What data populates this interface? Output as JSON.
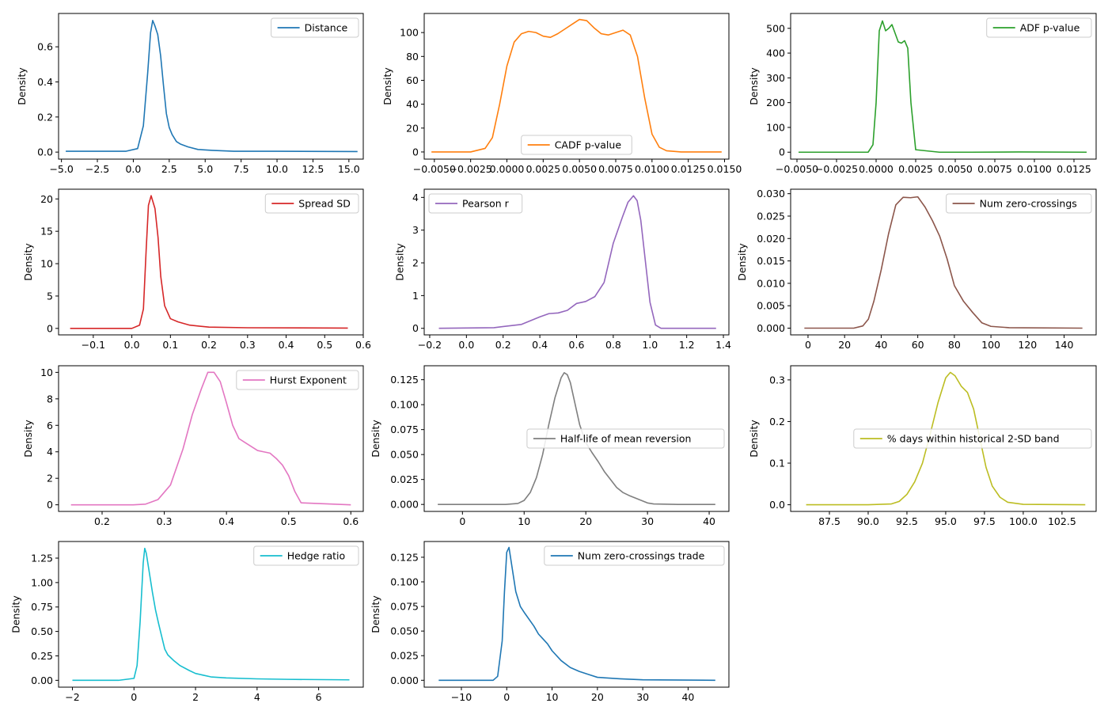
{
  "chart_data": [
    {
      "type": "line",
      "title": "",
      "xlabel": "",
      "ylabel": "Density",
      "series": [
        {
          "name": "Distance",
          "color": "#1f77b4",
          "x": [
            -4.7,
            -0.5,
            0.3,
            0.7,
            1.0,
            1.2,
            1.35,
            1.5,
            1.7,
            1.9,
            2.1,
            2.3,
            2.5,
            2.7,
            3.0,
            3.3,
            3.8,
            4.5,
            5.5,
            7,
            10,
            15.6
          ],
          "y": [
            0.005,
            0.005,
            0.02,
            0.15,
            0.45,
            0.68,
            0.75,
            0.72,
            0.67,
            0.55,
            0.38,
            0.22,
            0.14,
            0.1,
            0.06,
            0.045,
            0.03,
            0.015,
            0.01,
            0.005,
            0.005,
            0.003
          ]
        }
      ],
      "xlim": [
        -5.2,
        16.0
      ],
      "ylim": [
        -0.04,
        0.79
      ],
      "xticks": [
        -5.0,
        -2.5,
        0.0,
        2.5,
        5.0,
        7.5,
        10.0,
        12.5,
        15.0
      ],
      "xtick_labels": [
        "−5.0",
        "−2.5",
        "0.0",
        "2.5",
        "5.0",
        "7.5",
        "10.0",
        "12.5",
        "15.0"
      ],
      "yticks": [
        0.0,
        0.2,
        0.4,
        0.6
      ],
      "ytick_labels": [
        "0.0",
        "0.2",
        "0.4",
        "0.6"
      ],
      "legend_loc": "top-right"
    },
    {
      "type": "line",
      "title": "",
      "xlabel": "",
      "ylabel": "Density",
      "series": [
        {
          "name": "CADF p-value",
          "color": "#ff7f0e",
          "x": [
            -0.0052,
            -0.0025,
            -0.0015,
            -0.001,
            -0.0005,
            0.0,
            0.0005,
            0.001,
            0.0015,
            0.002,
            0.0025,
            0.003,
            0.0035,
            0.004,
            0.0045,
            0.005,
            0.0055,
            0.006,
            0.0065,
            0.007,
            0.0075,
            0.008,
            0.0085,
            0.009,
            0.0095,
            0.01,
            0.0105,
            0.011,
            0.012,
            0.0148
          ],
          "y": [
            0,
            0,
            3,
            12,
            40,
            72,
            92,
            99,
            101,
            100,
            97,
            96,
            99,
            103,
            107,
            111,
            110,
            104,
            99,
            98,
            100,
            102,
            98,
            80,
            45,
            15,
            4,
            1,
            0,
            0
          ]
        }
      ],
      "xlim": [
        -0.0057,
        0.0153
      ],
      "ylim": [
        -6,
        116
      ],
      "xticks": [
        -0.005,
        -0.0025,
        0.0,
        0.0025,
        0.005,
        0.0075,
        0.01,
        0.0125,
        0.015
      ],
      "xtick_labels": [
        "−0.0050",
        "−0.0025",
        "0.0000",
        "0.0025",
        "0.0050",
        "0.0075",
        "0.0100",
        "0.0125",
        "0.0150"
      ],
      "yticks": [
        0,
        20,
        40,
        60,
        80,
        100
      ],
      "ytick_labels": [
        "0",
        "20",
        "40",
        "60",
        "80",
        "100"
      ],
      "legend_loc": "bottom-center"
    },
    {
      "type": "line",
      "title": "",
      "xlabel": "",
      "ylabel": "Density",
      "series": [
        {
          "name": "ADF p-value",
          "color": "#2ca02c",
          "x": [
            -0.0049,
            -0.0005,
            -0.0002,
            0.0,
            0.0002,
            0.0004,
            0.0006,
            0.0008,
            0.001,
            0.0012,
            0.0014,
            0.0016,
            0.0018,
            0.002,
            0.0022,
            0.0025,
            0.004,
            0.006,
            0.009,
            0.0133
          ],
          "y": [
            0,
            0,
            30,
            200,
            490,
            530,
            490,
            500,
            515,
            480,
            445,
            440,
            450,
            420,
            200,
            10,
            0,
            0,
            1,
            0
          ]
        }
      ],
      "xlim": [
        -0.0054,
        0.0139
      ],
      "ylim": [
        -28,
        560
      ],
      "xticks": [
        -0.005,
        -0.0025,
        0.0,
        0.0025,
        0.005,
        0.0075,
        0.01,
        0.0125
      ],
      "xtick_labels": [
        "−0.0050",
        "−0.0025",
        "0.0000",
        "0.0025",
        "0.0050",
        "0.0075",
        "0.0100",
        "0.0125"
      ],
      "yticks": [
        0,
        100,
        200,
        300,
        400,
        500
      ],
      "ytick_labels": [
        "0",
        "100",
        "200",
        "300",
        "400",
        "500"
      ],
      "legend_loc": "top-right"
    },
    {
      "type": "line",
      "title": "",
      "xlabel": "",
      "ylabel": "Density",
      "series": [
        {
          "name": "Spread SD",
          "color": "#d62728",
          "x": [
            -0.16,
            0.0,
            0.02,
            0.03,
            0.037,
            0.043,
            0.05,
            0.055,
            0.06,
            0.068,
            0.075,
            0.085,
            0.1,
            0.12,
            0.15,
            0.2,
            0.3,
            0.56
          ],
          "y": [
            0,
            0,
            0.5,
            3,
            12,
            19,
            20.5,
            19.5,
            18.5,
            14,
            8,
            3.5,
            1.5,
            1.0,
            0.5,
            0.2,
            0.1,
            0.05
          ]
        }
      ],
      "xlim": [
        -0.19,
        0.6
      ],
      "ylim": [
        -1,
        21.5
      ],
      "xticks": [
        -0.1,
        0.0,
        0.1,
        0.2,
        0.3,
        0.4,
        0.5,
        0.6
      ],
      "xtick_labels": [
        "−0.1",
        "0.0",
        "0.1",
        "0.2",
        "0.3",
        "0.4",
        "0.5",
        "0.6"
      ],
      "yticks": [
        0,
        5,
        10,
        15,
        20
      ],
      "ytick_labels": [
        "0",
        "5",
        "10",
        "15",
        "20"
      ],
      "legend_loc": "top-right"
    },
    {
      "type": "line",
      "title": "",
      "xlabel": "",
      "ylabel": "Density",
      "series": [
        {
          "name": "Pearson r",
          "color": "#9467bd",
          "x": [
            -0.15,
            0.15,
            0.3,
            0.4,
            0.45,
            0.5,
            0.55,
            0.6,
            0.65,
            0.7,
            0.75,
            0.8,
            0.85,
            0.88,
            0.91,
            0.93,
            0.95,
            0.98,
            1.0,
            1.03,
            1.06,
            1.36
          ],
          "y": [
            0,
            0.02,
            0.12,
            0.35,
            0.45,
            0.47,
            0.55,
            0.76,
            0.82,
            0.97,
            1.4,
            2.6,
            3.4,
            3.85,
            4.05,
            3.9,
            3.3,
            1.8,
            0.8,
            0.1,
            0.0,
            0.0
          ]
        }
      ],
      "xlim": [
        -0.23,
        1.43
      ],
      "ylim": [
        -0.2,
        4.25
      ],
      "xticks": [
        -0.2,
        0.0,
        0.2,
        0.4,
        0.6,
        0.8,
        1.0,
        1.2,
        1.4
      ],
      "xtick_labels": [
        "−0.2",
        "0.0",
        "0.2",
        "0.4",
        "0.6",
        "0.8",
        "1.0",
        "1.2",
        "1.4"
      ],
      "yticks": [
        0,
        1,
        2,
        3,
        4
      ],
      "ytick_labels": [
        "0",
        "1",
        "2",
        "3",
        "4"
      ],
      "legend_loc": "top-left"
    },
    {
      "type": "line",
      "title": "",
      "xlabel": "",
      "ylabel": "Density",
      "series": [
        {
          "name": "Num zero-crossings",
          "color": "#8c564b",
          "x": [
            -2,
            25,
            30,
            33,
            36,
            40,
            44,
            48,
            52,
            56,
            60,
            64,
            68,
            72,
            76,
            80,
            85,
            90,
            95,
            100,
            110,
            150
          ],
          "y": [
            0,
            0,
            0.0005,
            0.002,
            0.006,
            0.013,
            0.021,
            0.0275,
            0.0292,
            0.0291,
            0.0293,
            0.027,
            0.024,
            0.0205,
            0.0155,
            0.0095,
            0.006,
            0.0035,
            0.0012,
            0.0004,
            0.0001,
            0
          ]
        }
      ],
      "xlim": [
        -9.5,
        157.5
      ],
      "ylim": [
        -0.0015,
        0.031
      ],
      "xticks": [
        0,
        20,
        40,
        60,
        80,
        100,
        120,
        140
      ],
      "xtick_labels": [
        "0",
        "20",
        "40",
        "60",
        "80",
        "100",
        "120",
        "140"
      ],
      "yticks": [
        0.0,
        0.005,
        0.01,
        0.015,
        0.02,
        0.025,
        0.03
      ],
      "ytick_labels": [
        "0.000",
        "0.005",
        "0.010",
        "0.015",
        "0.020",
        "0.025",
        "0.030"
      ],
      "legend_loc": "top-right"
    },
    {
      "type": "line",
      "title": "",
      "xlabel": "",
      "ylabel": "Density",
      "series": [
        {
          "name": "Hurst Exponent",
          "color": "#e377c2",
          "x": [
            0.15,
            0.25,
            0.27,
            0.29,
            0.31,
            0.33,
            0.345,
            0.36,
            0.37,
            0.38,
            0.39,
            0.4,
            0.41,
            0.42,
            0.43,
            0.45,
            0.46,
            0.47,
            0.48,
            0.49,
            0.5,
            0.51,
            0.52,
            0.6
          ],
          "y": [
            0,
            0,
            0.05,
            0.4,
            1.5,
            4.2,
            6.8,
            8.8,
            10.0,
            10.0,
            9.3,
            7.7,
            6.0,
            5.0,
            4.7,
            4.1,
            4.0,
            3.9,
            3.5,
            3.0,
            2.2,
            1.0,
            0.15,
            0
          ]
        }
      ],
      "xlim": [
        0.13,
        0.62
      ],
      "ylim": [
        -0.5,
        10.5
      ],
      "xticks": [
        0.2,
        0.3,
        0.4,
        0.5,
        0.6
      ],
      "xtick_labels": [
        "0.2",
        "0.3",
        "0.4",
        "0.5",
        "0.6"
      ],
      "yticks": [
        0,
        2,
        4,
        6,
        8,
        10
      ],
      "ytick_labels": [
        "0",
        "2",
        "4",
        "6",
        "8",
        "10"
      ],
      "legend_loc": "top-right"
    },
    {
      "type": "line",
      "title": "",
      "xlabel": "",
      "ylabel": "Density",
      "series": [
        {
          "name": "Half-life of mean reversion",
          "color": "#7f7f7f",
          "x": [
            -4,
            7,
            9,
            10,
            11,
            12,
            13,
            14,
            15,
            16,
            16.5,
            17,
            17.5,
            18,
            19,
            20,
            21,
            22,
            23,
            24,
            25,
            26,
            27,
            28,
            29,
            30,
            31,
            35,
            41
          ],
          "y": [
            0,
            0,
            0.001,
            0.004,
            0.012,
            0.027,
            0.05,
            0.08,
            0.107,
            0.127,
            0.132,
            0.13,
            0.122,
            0.108,
            0.08,
            0.062,
            0.052,
            0.043,
            0.033,
            0.025,
            0.017,
            0.012,
            0.009,
            0.0065,
            0.004,
            0.0015,
            0.0005,
            0,
            0
          ]
        }
      ],
      "xlim": [
        -6.2,
        43.2
      ],
      "ylim": [
        -0.007,
        0.139
      ],
      "xticks": [
        0,
        10,
        20,
        30,
        40
      ],
      "xtick_labels": [
        "0",
        "10",
        "20",
        "30",
        "40"
      ],
      "yticks": [
        0.0,
        0.025,
        0.05,
        0.075,
        0.1,
        0.125
      ],
      "ytick_labels": [
        "0.000",
        "0.025",
        "0.050",
        "0.075",
        "0.100",
        "0.125"
      ],
      "legend_loc": "center-right"
    },
    {
      "type": "line",
      "title": "",
      "xlabel": "",
      "ylabel": "Density",
      "series": [
        {
          "name": "% days within historical 2-SD band",
          "color": "#bcbd22",
          "x": [
            86.0,
            90.0,
            91.5,
            92.0,
            92.5,
            93.0,
            93.5,
            94.0,
            94.5,
            95.0,
            95.3,
            95.6,
            96.0,
            96.4,
            96.8,
            97.2,
            97.6,
            98.0,
            98.5,
            99.0,
            100.0,
            104.0
          ],
          "y": [
            0,
            0,
            0.002,
            0.008,
            0.025,
            0.055,
            0.1,
            0.17,
            0.245,
            0.305,
            0.318,
            0.31,
            0.285,
            0.27,
            0.23,
            0.16,
            0.09,
            0.045,
            0.018,
            0.006,
            0.001,
            0
          ]
        }
      ],
      "xlim": [
        85.0,
        104.7
      ],
      "ylim": [
        -0.016,
        0.334
      ],
      "xticks": [
        87.5,
        90.0,
        92.5,
        95.0,
        97.5,
        100.0,
        102.5
      ],
      "xtick_labels": [
        "87.5",
        "90.0",
        "92.5",
        "95.0",
        "97.5",
        "100.0",
        "102.5"
      ],
      "yticks": [
        0.0,
        0.1,
        0.2,
        0.3
      ],
      "ytick_labels": [
        "0.0",
        "0.1",
        "0.2",
        "0.3"
      ],
      "legend_loc": "center-right"
    },
    {
      "type": "line",
      "title": "",
      "xlabel": "",
      "ylabel": "Density",
      "series": [
        {
          "name": "Hedge ratio",
          "color": "#17becf",
          "x": [
            -2.0,
            -0.5,
            0.0,
            0.1,
            0.2,
            0.3,
            0.35,
            0.4,
            0.5,
            0.6,
            0.7,
            0.8,
            0.9,
            1.0,
            1.1,
            1.3,
            1.5,
            1.8,
            2.0,
            2.5,
            3.0,
            4.0,
            5.0,
            7.0
          ],
          "y": [
            0,
            0,
            0.02,
            0.15,
            0.6,
            1.2,
            1.35,
            1.3,
            1.1,
            0.9,
            0.72,
            0.58,
            0.45,
            0.32,
            0.26,
            0.2,
            0.15,
            0.1,
            0.07,
            0.035,
            0.025,
            0.015,
            0.01,
            0.005
          ]
        }
      ],
      "xlim": [
        -2.45,
        7.45
      ],
      "ylim": [
        -0.07,
        1.42
      ],
      "xticks": [
        -2,
        0,
        2,
        4,
        6
      ],
      "xtick_labels": [
        "−2",
        "0",
        "2",
        "4",
        "6"
      ],
      "yticks": [
        0.0,
        0.25,
        0.5,
        0.75,
        1.0,
        1.25
      ],
      "ytick_labels": [
        "0.00",
        "0.25",
        "0.50",
        "0.75",
        "1.00",
        "1.25"
      ],
      "legend_loc": "top-right"
    },
    {
      "type": "line",
      "title": "",
      "xlabel": "",
      "ylabel": "Density",
      "series": [
        {
          "name": "Num zero-crossings trade",
          "color": "#1f77b4",
          "x": [
            -15,
            -3,
            -2,
            -1,
            -0.5,
            0.0,
            0.5,
            1.0,
            2.0,
            3.0,
            4.0,
            6.0,
            7.0,
            8.0,
            9.0,
            10.0,
            12.0,
            14.0,
            16.0,
            18.0,
            20.0,
            25.0,
            30.0,
            46.0
          ],
          "y": [
            0,
            0,
            0.004,
            0.04,
            0.09,
            0.13,
            0.135,
            0.12,
            0.09,
            0.075,
            0.068,
            0.055,
            0.047,
            0.042,
            0.037,
            0.03,
            0.02,
            0.013,
            0.009,
            0.006,
            0.003,
            0.0015,
            0.0005,
            0
          ]
        }
      ],
      "xlim": [
        -18.2,
        49.0
      ],
      "ylim": [
        -0.007,
        0.141
      ],
      "xticks": [
        -10,
        0,
        10,
        20,
        30,
        40
      ],
      "xtick_labels": [
        "−10",
        "0",
        "10",
        "20",
        "30",
        "40"
      ],
      "yticks": [
        0.0,
        0.025,
        0.05,
        0.075,
        0.1,
        0.125
      ],
      "ytick_labels": [
        "0.000",
        "0.025",
        "0.050",
        "0.075",
        "0.100",
        "0.125"
      ],
      "legend_loc": "top-right"
    }
  ]
}
